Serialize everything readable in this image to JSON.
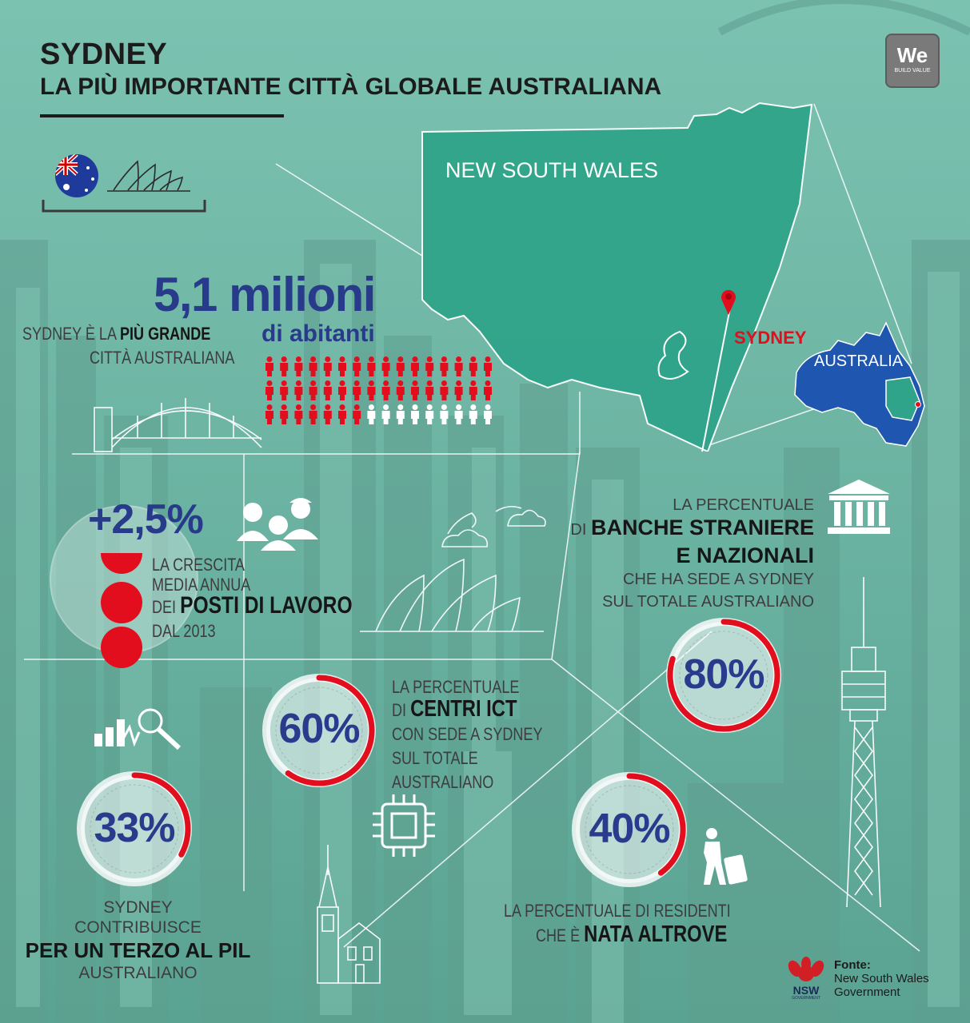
{
  "header": {
    "title": "SYDNEY",
    "subtitle": "LA PIÙ IMPORTANTE CITTÀ GLOBALE AUSTRALIANA"
  },
  "logo": {
    "mark": "We",
    "tagline": "BUILD VALUE"
  },
  "map": {
    "state_label": "NEW SOUTH WALES",
    "city_label": "SYDNEY",
    "country_label": "AUSTRALIA"
  },
  "population": {
    "number": "5,1 milioni",
    "unit": "di abitanti",
    "line1_pre": "SYDNEY È LA ",
    "line1_bold": "PIÙ GRANDE",
    "line2": "CITTÀ AUSTRALIANA",
    "icons_total": 48,
    "icons_filled": 39
  },
  "jobs": {
    "value": "+2,5%",
    "line1": "LA CRESCITA",
    "line2": "MEDIA ANNUA",
    "line3_pre": "DEI ",
    "line3_bold": "POSTI DI LAVORO",
    "line4": "DAL 2013"
  },
  "banks": {
    "line1": "LA PERCENTUALE",
    "line2_pre": "DI ",
    "line2_bold": "BANCHE STRANIERE",
    "line3_bold": "E NAZIONALI",
    "line4": "CHE HA SEDE A SYDNEY",
    "line5": "SUL TOTALE AUSTRALIANO",
    "value": "80%",
    "fraction": 0.8
  },
  "ict": {
    "line1": "LA PERCENTUALE",
    "line2_pre": "DI ",
    "line2_bold": "CENTRI ICT",
    "line3": "CON SEDE A SYDNEY",
    "line4": "SUL TOTALE",
    "line5": "AUSTRALIANO",
    "value": "60%",
    "fraction": 0.6
  },
  "gdp": {
    "value": "33%",
    "fraction": 0.33,
    "line1": "SYDNEY",
    "line2": "CONTRIBUISCE",
    "line3_bold": "PER UN TERZO AL PIL",
    "line4": "AUSTRALIANO"
  },
  "residents": {
    "value": "40%",
    "fraction": 0.4,
    "line1": "LA PERCENTUALE DI RESIDENTI",
    "line2_pre": "CHE È ",
    "line2_bold": "NATA ALTROVE"
  },
  "source": {
    "label": "Fonte:",
    "line1": "New South Wales",
    "line2": "Government",
    "nsw_mark": "NSW",
    "nsw_sub": "GOVERNMENT"
  },
  "colors": {
    "teal": "#6fb9a8",
    "map_teal": "#2fa48a",
    "accent_red": "#e20d1d",
    "navy": "#2a3a8c",
    "australia_blue": "#1f56b0"
  }
}
